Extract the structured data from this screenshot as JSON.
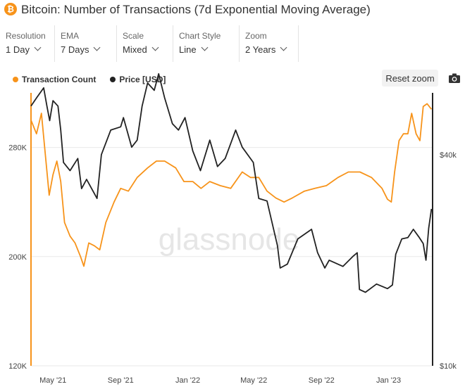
{
  "header": {
    "title": "Bitcoin: Number of Transactions (7d Exponential Moving Average)",
    "icon": "bitcoin-icon",
    "icon_glyph": "₿",
    "brand_color": "#f7931a"
  },
  "controls": [
    {
      "label": "Resolution",
      "value": "1 Day"
    },
    {
      "label": "EMA",
      "value": "7 Days"
    },
    {
      "label": "Scale",
      "value": "Mixed"
    },
    {
      "label": "Chart Style",
      "value": "Line"
    },
    {
      "label": "Zoom",
      "value": "2 Years"
    }
  ],
  "toolbar": {
    "reset_zoom": "Reset zoom",
    "camera_icon": "camera-icon"
  },
  "watermark": "glassnode",
  "chart_data": {
    "type": "line",
    "x_range": [
      "2021-03-22",
      "2023-03-22"
    ],
    "x_ticks": [
      "May '21",
      "Sep '21",
      "Jan '22",
      "May '22",
      "Sep '22",
      "Jan '23"
    ],
    "y_left": {
      "scale": "linear",
      "range": [
        120000,
        320000
      ],
      "ticks": [
        "120K",
        "200K",
        "280K"
      ],
      "tick_values": [
        120000,
        200000,
        280000
      ]
    },
    "y_right": {
      "scale": "log",
      "range": [
        10000,
        60000
      ],
      "ticks": [
        "$10k",
        "$40k"
      ],
      "tick_values": [
        10000,
        40000
      ]
    },
    "series": [
      {
        "name": "Transaction Count",
        "axis": "left",
        "color": "#f7931a",
        "points": [
          [
            "2021-03-22",
            300000
          ],
          [
            "2021-04-01",
            290000
          ],
          [
            "2021-04-10",
            305000
          ],
          [
            "2021-04-17",
            275000
          ],
          [
            "2021-04-24",
            245000
          ],
          [
            "2021-05-01",
            260000
          ],
          [
            "2021-05-08",
            270000
          ],
          [
            "2021-05-15",
            255000
          ],
          [
            "2021-05-22",
            225000
          ],
          [
            "2021-06-01",
            215000
          ],
          [
            "2021-06-10",
            210000
          ],
          [
            "2021-06-20",
            200000
          ],
          [
            "2021-06-26",
            193000
          ],
          [
            "2021-07-05",
            210000
          ],
          [
            "2021-07-15",
            208000
          ],
          [
            "2021-07-25",
            205000
          ],
          [
            "2021-08-05",
            225000
          ],
          [
            "2021-08-20",
            240000
          ],
          [
            "2021-09-01",
            250000
          ],
          [
            "2021-09-15",
            248000
          ],
          [
            "2021-10-01",
            258000
          ],
          [
            "2021-10-20",
            265000
          ],
          [
            "2021-11-05",
            270000
          ],
          [
            "2021-11-20",
            270000
          ],
          [
            "2021-12-10",
            265000
          ],
          [
            "2021-12-25",
            255000
          ],
          [
            "2022-01-10",
            255000
          ],
          [
            "2022-01-25",
            250000
          ],
          [
            "2022-02-10",
            255000
          ],
          [
            "2022-03-01",
            252000
          ],
          [
            "2022-03-20",
            250000
          ],
          [
            "2022-04-10",
            262000
          ],
          [
            "2022-04-25",
            258000
          ],
          [
            "2022-05-10",
            258000
          ],
          [
            "2022-05-25",
            248000
          ],
          [
            "2022-06-10",
            243000
          ],
          [
            "2022-06-25",
            240000
          ],
          [
            "2022-07-10",
            243000
          ],
          [
            "2022-08-01",
            248000
          ],
          [
            "2022-08-20",
            250000
          ],
          [
            "2022-09-10",
            252000
          ],
          [
            "2022-10-01",
            258000
          ],
          [
            "2022-10-20",
            262000
          ],
          [
            "2022-11-10",
            262000
          ],
          [
            "2022-12-01",
            258000
          ],
          [
            "2022-12-20",
            250000
          ],
          [
            "2022-12-30",
            242000
          ],
          [
            "2023-01-06",
            240000
          ],
          [
            "2023-01-12",
            262000
          ],
          [
            "2023-01-20",
            285000
          ],
          [
            "2023-01-28",
            290000
          ],
          [
            "2023-02-05",
            290000
          ],
          [
            "2023-02-12",
            305000
          ],
          [
            "2023-02-20",
            290000
          ],
          [
            "2023-02-27",
            285000
          ],
          [
            "2023-03-05",
            310000
          ],
          [
            "2023-03-12",
            312000
          ],
          [
            "2023-03-20",
            308000
          ]
        ]
      },
      {
        "name": "Price [USD]",
        "axis": "right",
        "color": "#222222",
        "points": [
          [
            "2021-03-22",
            55000
          ],
          [
            "2021-04-01",
            58000
          ],
          [
            "2021-04-14",
            62000
          ],
          [
            "2021-04-20",
            55000
          ],
          [
            "2021-04-25",
            50000
          ],
          [
            "2021-05-01",
            57000
          ],
          [
            "2021-05-10",
            55000
          ],
          [
            "2021-05-15",
            47000
          ],
          [
            "2021-05-20",
            38000
          ],
          [
            "2021-06-01",
            36000
          ],
          [
            "2021-06-15",
            39000
          ],
          [
            "2021-06-22",
            32000
          ],
          [
            "2021-07-01",
            34000
          ],
          [
            "2021-07-20",
            30000
          ],
          [
            "2021-07-28",
            40000
          ],
          [
            "2021-08-14",
            47000
          ],
          [
            "2021-09-01",
            48000
          ],
          [
            "2021-09-06",
            51000
          ],
          [
            "2021-09-21",
            42000
          ],
          [
            "2021-10-01",
            44000
          ],
          [
            "2021-10-10",
            55000
          ],
          [
            "2021-10-20",
            64000
          ],
          [
            "2021-11-01",
            61000
          ],
          [
            "2021-11-09",
            68000
          ],
          [
            "2021-11-20",
            58000
          ],
          [
            "2021-12-04",
            49000
          ],
          [
            "2021-12-15",
            47000
          ],
          [
            "2021-12-27",
            51000
          ],
          [
            "2022-01-10",
            41000
          ],
          [
            "2022-01-24",
            36000
          ],
          [
            "2022-02-10",
            44000
          ],
          [
            "2022-02-24",
            37000
          ],
          [
            "2022-03-10",
            39000
          ],
          [
            "2022-03-29",
            47000
          ],
          [
            "2022-04-10",
            42000
          ],
          [
            "2022-04-30",
            38000
          ],
          [
            "2022-05-10",
            30000
          ],
          [
            "2022-05-25",
            29500
          ],
          [
            "2022-06-13",
            22000
          ],
          [
            "2022-06-18",
            19000
          ],
          [
            "2022-07-01",
            19500
          ],
          [
            "2022-07-20",
            23000
          ],
          [
            "2022-08-14",
            24500
          ],
          [
            "2022-08-25",
            21000
          ],
          [
            "2022-09-07",
            19000
          ],
          [
            "2022-09-15",
            20000
          ],
          [
            "2022-10-10",
            19200
          ],
          [
            "2022-10-28",
            20500
          ],
          [
            "2022-11-05",
            21000
          ],
          [
            "2022-11-09",
            16500
          ],
          [
            "2022-11-20",
            16200
          ],
          [
            "2022-12-10",
            17100
          ],
          [
            "2022-12-30",
            16600
          ],
          [
            "2023-01-08",
            17000
          ],
          [
            "2023-01-14",
            20800
          ],
          [
            "2023-01-25",
            23000
          ],
          [
            "2023-02-05",
            23200
          ],
          [
            "2023-02-15",
            24500
          ],
          [
            "2023-02-25",
            23300
          ],
          [
            "2023-03-05",
            22300
          ],
          [
            "2023-03-10",
            20000
          ],
          [
            "2023-03-15",
            24700
          ],
          [
            "2023-03-20",
            28000
          ]
        ]
      }
    ]
  }
}
